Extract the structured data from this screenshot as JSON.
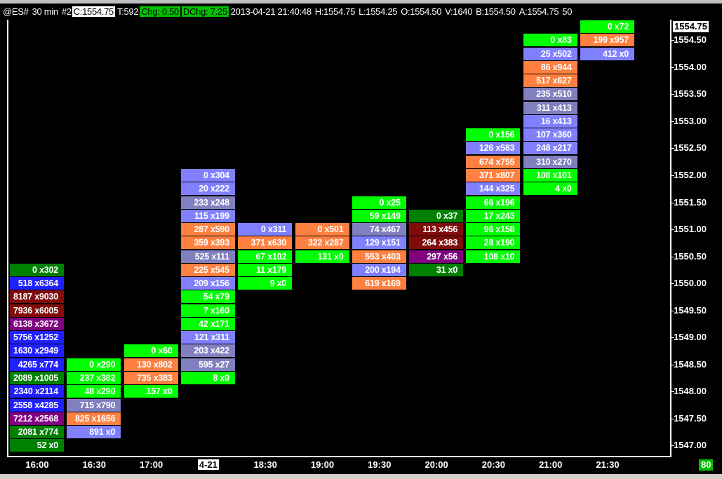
{
  "header": {
    "symbol": "@ES#",
    "interval": "30 min",
    "chart_no": "#2",
    "close": "C:1554.75",
    "ticks": "T:592",
    "chg": "Chg: 0.50",
    "dchg": "DChg: 7.25",
    "datetime": "2013-04-21 21:40:48",
    "high": "H:1554.75",
    "low": "L:1554.25",
    "open": "O:1554.50",
    "volume": "V:1640",
    "bid": "B:1554.50",
    "ask": "A:1554.75",
    "trunc": "50"
  },
  "colors": {
    "dg": "#008000",
    "bl": "#2020ff",
    "dr": "#800c0c",
    "pu": "#800080",
    "li": "#00ff00",
    "sa": "#ff8040",
    "lp": "#8080ff",
    "gp": "#8080c0"
  },
  "price_axis": {
    "current": "1554.75",
    "labels": [
      "1554.50",
      "1554.00",
      "1553.50",
      "1553.00",
      "1552.50",
      "1552.00",
      "1551.50",
      "1551.00",
      "1550.50",
      "1550.00",
      "1549.50",
      "1549.00",
      "1548.50",
      "1548.00",
      "1547.50",
      "1547.00"
    ],
    "tick_size": 0.25,
    "max": 1554.75
  },
  "x_axis": {
    "labels": [
      "16:00",
      "16:30",
      "17:00",
      "4-21",
      "18:30",
      "19:00",
      "19:30",
      "20:00",
      "20:30",
      "21:00",
      "21:30"
    ],
    "highlight_index": 3
  },
  "badge": "80",
  "columns": [
    {
      "top": 1550.25,
      "cells": [
        [
          "0 x302",
          "dg"
        ],
        [
          "518 x6364",
          "bl"
        ],
        [
          "8187 x9030",
          "dr"
        ],
        [
          "7936 x6005",
          "dr"
        ],
        [
          "6138 x3672",
          "pu"
        ],
        [
          "5756 x1252",
          "bl"
        ],
        [
          "1630 x2949",
          "bl"
        ],
        [
          "4265 x774",
          "bl"
        ],
        [
          "2089 x1005",
          "dg"
        ],
        [
          "2340 x2114",
          "bl"
        ],
        [
          "2558 x4285",
          "bl"
        ],
        [
          "7212 x2568",
          "pu"
        ],
        [
          "2081 x774",
          "dg"
        ],
        [
          "52 x0",
          "dg"
        ]
      ]
    },
    {
      "top": 1548.5,
      "cells": [
        [
          "0 x290",
          "li"
        ],
        [
          "237 x382",
          "li"
        ],
        [
          "48 x290",
          "li"
        ],
        [
          "715 x790",
          "gp"
        ],
        [
          "825 x1656",
          "sa"
        ],
        [
          "891 x0",
          "lp"
        ]
      ]
    },
    {
      "top": 1548.75,
      "cells": [
        [
          "0 x60",
          "li"
        ],
        [
          "130 x802",
          "sa"
        ],
        [
          "735 x383",
          "sa"
        ],
        [
          "157 x0",
          "li"
        ]
      ]
    },
    {
      "top": 1552.0,
      "cells": [
        [
          "0 x304",
          "lp"
        ],
        [
          "20 x222",
          "lp"
        ],
        [
          "233 x248",
          "gp"
        ],
        [
          "115 x199",
          "lp"
        ],
        [
          "287 x590",
          "sa"
        ],
        [
          "359 x393",
          "sa"
        ],
        [
          "525 x111",
          "gp"
        ],
        [
          "225 x545",
          "sa"
        ],
        [
          "209 x156",
          "lp"
        ],
        [
          "54 x79",
          "li"
        ],
        [
          "7 x160",
          "li"
        ],
        [
          "42 x171",
          "li"
        ],
        [
          "121 x311",
          "lp"
        ],
        [
          "203 x422",
          "gp"
        ],
        [
          "595 x27",
          "gp"
        ],
        [
          "8 x0",
          "li"
        ]
      ]
    },
    {
      "top": 1551.0,
      "cells": [
        [
          "0 x311",
          "lp"
        ],
        [
          "371 x630",
          "sa"
        ],
        [
          "67 x102",
          "li"
        ],
        [
          "11 x179",
          "li"
        ],
        [
          "9 x0",
          "li"
        ]
      ]
    },
    {
      "top": 1551.0,
      "cells": [
        [
          "0 x501",
          "sa"
        ],
        [
          "322 x287",
          "sa"
        ],
        [
          "131 x0",
          "li"
        ]
      ]
    },
    {
      "top": 1551.5,
      "cells": [
        [
          "0 x25",
          "li"
        ],
        [
          "59 x149",
          "li"
        ],
        [
          "74 x467",
          "gp"
        ],
        [
          "129 x151",
          "lp"
        ],
        [
          "553 x403",
          "sa"
        ],
        [
          "200 x194",
          "lp"
        ],
        [
          "619 x169",
          "sa"
        ]
      ]
    },
    {
      "top": 1551.25,
      "cells": [
        [
          "0 x37",
          "dg"
        ],
        [
          "113 x456",
          "dr"
        ],
        [
          "264 x383",
          "dr"
        ],
        [
          "297 x56",
          "pu"
        ],
        [
          "31 x0",
          "dg"
        ]
      ]
    },
    {
      "top": 1552.75,
      "cells": [
        [
          "0 x156",
          "li"
        ],
        [
          "126 x583",
          "lp"
        ],
        [
          "674 x755",
          "sa"
        ],
        [
          "371 x807",
          "sa"
        ],
        [
          "144 x325",
          "lp"
        ],
        [
          "66 x196",
          "li"
        ],
        [
          "17 x243",
          "li"
        ],
        [
          "96 x158",
          "li"
        ],
        [
          "28 x190",
          "li"
        ],
        [
          "108 x10",
          "li"
        ]
      ]
    },
    {
      "top": 1554.5,
      "cells": [
        [
          "0 x83",
          "li"
        ],
        [
          "25 x502",
          "lp"
        ],
        [
          "86 x944",
          "sa"
        ],
        [
          "517 x627",
          "sa"
        ],
        [
          "235 x510",
          "gp"
        ],
        [
          "311 x413",
          "gp"
        ],
        [
          "16 x413",
          "lp"
        ],
        [
          "107 x360",
          "lp"
        ],
        [
          "248 x217",
          "lp"
        ],
        [
          "310 x270",
          "gp"
        ],
        [
          "108 x101",
          "li"
        ],
        [
          "4 x0",
          "li"
        ]
      ]
    },
    {
      "top": 1554.75,
      "cells": [
        [
          "0 x72",
          "li"
        ],
        [
          "199 x957",
          "sa"
        ],
        [
          "412 x0",
          "lp"
        ]
      ]
    }
  ]
}
